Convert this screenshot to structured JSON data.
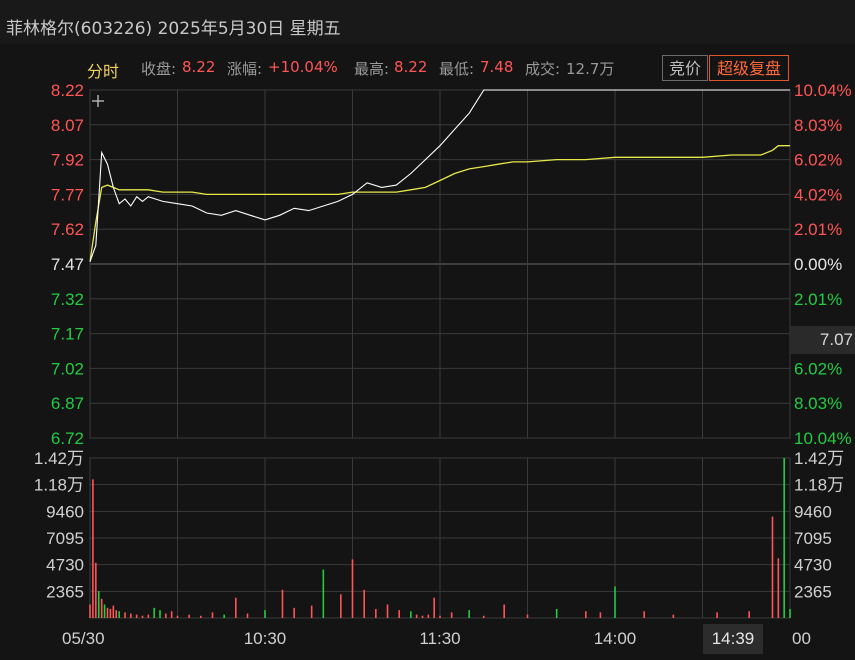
{
  "header": {
    "title": "菲林格尔(603226) 2025年5月30日 星期五"
  },
  "info": {
    "tab": "分时",
    "close_label": "收盘:",
    "close_value": "8.22",
    "change_label": "涨幅:",
    "change_value": "+10.04%",
    "high_label": "最高:",
    "high_value": "8.22",
    "low_label": "最低:",
    "low_value": "7.48",
    "volume_label": "成交:",
    "volume_value": "12.7万"
  },
  "buttons": {
    "auction": "竞价",
    "super_review": "超级复盘"
  },
  "badges": {
    "current_price": "7.07",
    "cursor_time": "14:39"
  },
  "colors": {
    "up": "#ff5555",
    "down": "#22cc44",
    "flat": "#e6e6e6",
    "price_line": "#ffffff",
    "avg_line": "#e8e84a",
    "grid": "#3a3a3a"
  },
  "chart_data": {
    "type": "line",
    "prev_close": 7.47,
    "price_ticks": [
      "8.22",
      "8.07",
      "7.92",
      "7.77",
      "7.62",
      "7.47",
      "7.32",
      "7.17",
      "7.02",
      "6.87",
      "6.72"
    ],
    "pct_ticks": [
      "10.04%",
      "8.03%",
      "6.02%",
      "4.02%",
      "2.01%",
      "0.00%",
      "2.01%",
      "",
      "6.02%",
      "8.03%",
      "10.04%"
    ],
    "volume_ticks": [
      "1.42万",
      "1.18万",
      "9460",
      "7095",
      "4730",
      "2365"
    ],
    "x_ticks": [
      "05/30",
      "10:30",
      "11:30",
      "14:00",
      "00"
    ],
    "ylim": [
      6.72,
      8.22
    ],
    "x": [
      0,
      2,
      4,
      6,
      8,
      10,
      12,
      14,
      16,
      18,
      20,
      25,
      30,
      35,
      40,
      45,
      50,
      55,
      60,
      65,
      70,
      75,
      80,
      85,
      90,
      95,
      100,
      105,
      110,
      115,
      120,
      125,
      130,
      135,
      140,
      145,
      150,
      160,
      170,
      180,
      190,
      200,
      210,
      220,
      230,
      234,
      236,
      240
    ],
    "series": [
      {
        "name": "price",
        "values": [
          7.48,
          7.55,
          7.95,
          7.9,
          7.8,
          7.73,
          7.75,
          7.72,
          7.76,
          7.74,
          7.76,
          7.74,
          7.73,
          7.72,
          7.69,
          7.68,
          7.7,
          7.68,
          7.66,
          7.68,
          7.71,
          7.7,
          7.72,
          7.74,
          7.77,
          7.82,
          7.8,
          7.81,
          7.86,
          7.92,
          7.98,
          8.05,
          8.12,
          8.22,
          8.22,
          8.22,
          8.22,
          8.22,
          8.22,
          8.22,
          8.22,
          8.22,
          8.22,
          8.22,
          8.22,
          8.22,
          8.22,
          8.22
        ]
      },
      {
        "name": "average",
        "values": [
          7.48,
          7.65,
          7.8,
          7.81,
          7.8,
          7.79,
          7.79,
          7.79,
          7.79,
          7.79,
          7.79,
          7.78,
          7.78,
          7.78,
          7.77,
          7.77,
          7.77,
          7.77,
          7.77,
          7.77,
          7.77,
          7.77,
          7.77,
          7.77,
          7.78,
          7.78,
          7.78,
          7.78,
          7.79,
          7.8,
          7.83,
          7.86,
          7.88,
          7.89,
          7.9,
          7.91,
          7.91,
          7.92,
          7.92,
          7.93,
          7.93,
          7.93,
          7.93,
          7.94,
          7.94,
          7.96,
          7.98,
          7.98
        ]
      }
    ],
    "volume": {
      "max": 14200,
      "x": [
        0,
        1,
        2,
        3,
        4,
        5,
        6,
        7,
        8,
        9,
        10,
        12,
        14,
        16,
        18,
        20,
        22,
        24,
        26,
        28,
        30,
        34,
        38,
        42,
        46,
        50,
        54,
        60,
        66,
        70,
        76,
        80,
        86,
        90,
        94,
        98,
        102,
        106,
        110,
        112,
        114,
        116,
        118,
        120,
        124,
        130,
        135,
        142,
        150,
        160,
        170,
        175,
        180,
        190,
        200,
        215,
        226,
        234,
        236,
        238,
        240
      ],
      "values": [
        1200,
        12300,
        4900,
        2400,
        1700,
        1200,
        900,
        800,
        1100,
        700,
        600,
        500,
        400,
        300,
        200,
        300,
        900,
        700,
        400,
        600,
        200,
        300,
        200,
        500,
        300,
        1800,
        400,
        700,
        2500,
        900,
        1100,
        4300,
        2100,
        5200,
        2500,
        800,
        1200,
        700,
        600,
        300,
        200,
        300,
        1800,
        200,
        500,
        700,
        200,
        1200,
        300,
        800,
        600,
        500,
        2800,
        600,
        300,
        500,
        600,
        9000,
        5300,
        14200,
        800
      ]
    }
  }
}
